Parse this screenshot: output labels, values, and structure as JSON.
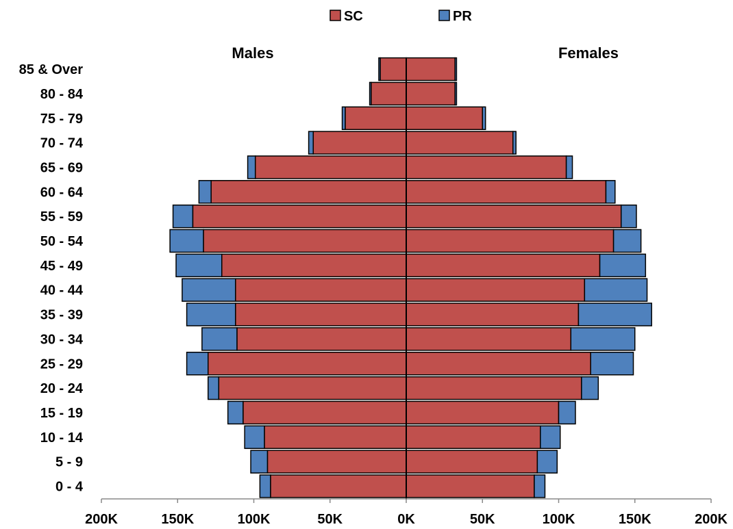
{
  "chart_data": {
    "type": "bar",
    "orientation": "horizontal",
    "subtype": "population-pyramid",
    "title": "",
    "panel_labels": {
      "left": "Males",
      "right": "Females"
    },
    "categories": [
      "0 - 4",
      "5 - 9",
      "10 - 14",
      "15 - 19",
      "20 - 24",
      "25 - 29",
      "30 - 34",
      "35 - 39",
      "40 - 44",
      "45 - 49",
      "50 - 54",
      "55 - 59",
      "60 - 64",
      "65 - 69",
      "70 - 74",
      "75 - 79",
      "80 - 84",
      "85 & Over"
    ],
    "series": [
      {
        "name": "SC",
        "color": "#C0504D",
        "males": [
          89000,
          91000,
          93000,
          107000,
          123000,
          130000,
          111000,
          112000,
          112000,
          121000,
          133000,
          140000,
          128000,
          99000,
          61000,
          40000,
          23000,
          17000
        ],
        "females": [
          84000,
          86000,
          88000,
          100000,
          115000,
          121000,
          108000,
          113000,
          117000,
          127000,
          136000,
          141000,
          131000,
          105000,
          70000,
          50000,
          32000,
          32000
        ]
      },
      {
        "name": "PR",
        "color": "#4F81BD",
        "males": [
          7000,
          11000,
          13000,
          10000,
          7000,
          14000,
          23000,
          32000,
          35000,
          30000,
          22000,
          13000,
          8000,
          5000,
          3000,
          2000,
          1000,
          1000
        ],
        "females": [
          7000,
          13000,
          13000,
          11000,
          11000,
          28000,
          42000,
          48000,
          41000,
          30000,
          18000,
          10000,
          6000,
          4000,
          2000,
          2000,
          1000,
          1000
        ]
      }
    ],
    "legend": {
      "position": "top-center",
      "items": [
        "SC",
        "PR"
      ]
    },
    "xaxis": {
      "ticks": [
        "200K",
        "150K",
        "100K",
        "50K",
        "0K",
        "50K",
        "100K",
        "150K",
        "200K"
      ],
      "range": [
        -200000,
        200000
      ]
    },
    "grid": false
  }
}
